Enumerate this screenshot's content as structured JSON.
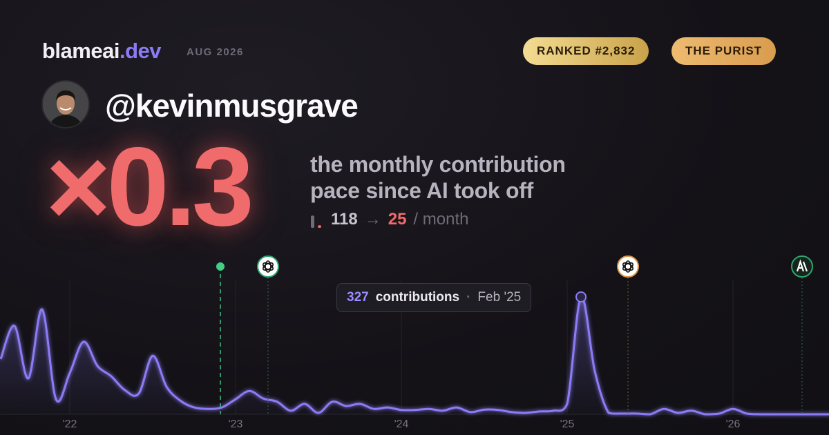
{
  "header": {
    "brand": "blameai",
    "brand_tld": ".dev",
    "period": "AUG 2026",
    "badges": [
      "RANKED #2,832",
      "THE PURIST"
    ]
  },
  "profile": {
    "handle": "@kevinmusgrave"
  },
  "stat": {
    "multiplier": "×0.3",
    "caption_line1": "the monthly contribution",
    "caption_line2": "pace since AI took off",
    "before": 118,
    "arrow": "→",
    "after": 25,
    "unit": "/ month"
  },
  "chart_data": {
    "type": "line",
    "categories": [
      null,
      null,
      null,
      null,
      null,
      "'22",
      null,
      null,
      null,
      null,
      null,
      null,
      null,
      null,
      null,
      null,
      null,
      "'23",
      null,
      null,
      null,
      null,
      null,
      null,
      null,
      null,
      null,
      null,
      null,
      "'24",
      null,
      null,
      null,
      null,
      null,
      null,
      null,
      null,
      null,
      null,
      null,
      "'25",
      null,
      null,
      null,
      null,
      null,
      null,
      null,
      null,
      null,
      null,
      null,
      "'26",
      null,
      null,
      null,
      null,
      null,
      null,
      null
    ],
    "series": [
      {
        "name": "contributions",
        "color": "#8b7cf6",
        "values": [
          154,
          246,
          100,
          292,
          42,
          115,
          202,
          135,
          106,
          67,
          58,
          163,
          77,
          38,
          19,
          15,
          19,
          42,
          65,
          44,
          35,
          10,
          29,
          4,
          35,
          23,
          29,
          15,
          19,
          12,
          12,
          15,
          10,
          19,
          6,
          13,
          12,
          6,
          4,
          8,
          10,
          29,
          327,
          120,
          4,
          2,
          2,
          0,
          15,
          4,
          10,
          0,
          2,
          15,
          2,
          0,
          0,
          0,
          0,
          0,
          0
        ]
      }
    ],
    "ylim": [
      0,
      420
    ],
    "tooltip": {
      "value": 327,
      "label": "contributions",
      "date": "Feb '25"
    }
  }
}
